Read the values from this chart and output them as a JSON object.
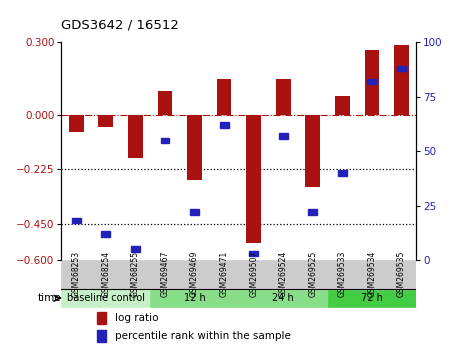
{
  "title": "GDS3642 / 16512",
  "samples": [
    "GSM268253",
    "GSM268254",
    "GSM268255",
    "GSM269467",
    "GSM269469",
    "GSM269471",
    "GSM269507",
    "GSM269524",
    "GSM269525",
    "GSM269533",
    "GSM269534",
    "GSM269535"
  ],
  "log_ratio": [
    -0.07,
    -0.05,
    -0.18,
    0.1,
    -0.27,
    0.15,
    -0.53,
    0.15,
    -0.3,
    0.08,
    0.27,
    0.29
  ],
  "percentile_rank": [
    18,
    12,
    5,
    55,
    22,
    62,
    3,
    57,
    22,
    40,
    82,
    88
  ],
  "ylim_left": [
    -0.6,
    0.3
  ],
  "ylim_right": [
    0,
    100
  ],
  "yticks_left": [
    0.3,
    0,
    -0.225,
    -0.45,
    -0.6
  ],
  "yticks_right": [
    100,
    75,
    50,
    25,
    0
  ],
  "hlines": [
    -0.225,
    -0.45
  ],
  "bar_color": "#AA1111",
  "pct_color": "#2222BB",
  "group_defs": [
    {
      "label": "baseline control",
      "start": 0,
      "end": 3,
      "color": "#c8f0c8"
    },
    {
      "label": "12 h",
      "start": 3,
      "end": 6,
      "color": "#88dd88"
    },
    {
      "label": "24 h",
      "start": 6,
      "end": 9,
      "color": "#88dd88"
    },
    {
      "label": "72 h",
      "start": 9,
      "end": 12,
      "color": "#44cc44"
    }
  ],
  "time_label": "time",
  "legend_log_ratio": "log ratio",
  "legend_pct": "percentile rank within the sample",
  "sample_box_color": "#cccccc",
  "sample_box_edge": "#888888"
}
